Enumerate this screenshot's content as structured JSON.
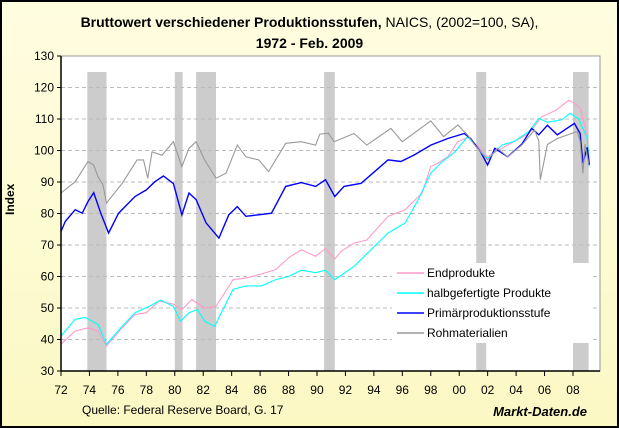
{
  "title": {
    "bold_part": "Bruttowert verschiedener Produktionsstufen,",
    "normal_part": " NAICS, (2002=100, SA),",
    "line2": "1972 - Feb. 2009"
  },
  "source": "Quelle: Federal Reserve Board, G. 17",
  "brand": "Markt-Daten.de",
  "chart_data": {
    "type": "line",
    "title": "Bruttowert verschiedener Produktionsstufen, NAICS, (2002=100, SA), 1972 - Feb. 2009",
    "xlabel": "",
    "ylabel": "Index",
    "xlim": [
      1972,
      2009.9
    ],
    "ylim": [
      30,
      130
    ],
    "x_ticks": [
      {
        "v": 1972,
        "l": "72"
      },
      {
        "v": 1974,
        "l": "74"
      },
      {
        "v": 1976,
        "l": "76"
      },
      {
        "v": 1978,
        "l": "78"
      },
      {
        "v": 1980,
        "l": "80"
      },
      {
        "v": 1982,
        "l": "82"
      },
      {
        "v": 1984,
        "l": "84"
      },
      {
        "v": 1986,
        "l": "86"
      },
      {
        "v": 1988,
        "l": "88"
      },
      {
        "v": 1990,
        "l": "90"
      },
      {
        "v": 1992,
        "l": "92"
      },
      {
        "v": 1994,
        "l": "94"
      },
      {
        "v": 1996,
        "l": "96"
      },
      {
        "v": 1998,
        "l": "98"
      },
      {
        "v": 2000,
        "l": "00"
      },
      {
        "v": 2002,
        "l": "02"
      },
      {
        "v": 2004,
        "l": "04"
      },
      {
        "v": 2006,
        "l": "06"
      },
      {
        "v": 2008,
        "l": "08"
      }
    ],
    "y_ticks": [
      30,
      40,
      50,
      60,
      70,
      80,
      90,
      100,
      110,
      120,
      130
    ],
    "grid": "horizontal dashed",
    "legend_position": "bottom-right",
    "recession_shading": [
      [
        1973.85,
        1975.2
      ],
      [
        1980.0,
        1980.55
      ],
      [
        1981.5,
        1982.9
      ],
      [
        1990.5,
        1991.25
      ],
      [
        2001.2,
        2001.9
      ],
      [
        2008.0,
        2009.1
      ]
    ],
    "shading_color": "#cccccc",
    "series": [
      {
        "name": "Endprodukte",
        "color": "#ff99cc",
        "points": [
          [
            1972,
            38.5
          ],
          [
            1973,
            42.7
          ],
          [
            1973.9,
            43.7
          ],
          [
            1974.6,
            42.7
          ],
          [
            1975.2,
            37.9
          ],
          [
            1976.3,
            43.7
          ],
          [
            1977.2,
            47.9
          ],
          [
            1978,
            48.5
          ],
          [
            1978.9,
            52.2
          ],
          [
            1979.9,
            51.2
          ],
          [
            1980.5,
            49.5
          ],
          [
            1981.2,
            52.7
          ],
          [
            1982.1,
            50
          ],
          [
            1982.9,
            50.5
          ],
          [
            1984.1,
            59
          ],
          [
            1985,
            59.5
          ],
          [
            1986.1,
            60.8
          ],
          [
            1987.1,
            62.2
          ],
          [
            1988,
            65.9
          ],
          [
            1988.9,
            68.5
          ],
          [
            1989.9,
            66.4
          ],
          [
            1990.6,
            68.9
          ],
          [
            1991.25,
            65.6
          ],
          [
            1991.7,
            68
          ],
          [
            1992.6,
            70.6
          ],
          [
            1993.5,
            71.6
          ],
          [
            1995,
            79.1
          ],
          [
            1996.2,
            81.2
          ],
          [
            1997.4,
            86.5
          ],
          [
            1998,
            94.9
          ],
          [
            1998.5,
            96
          ],
          [
            1999.2,
            98
          ],
          [
            1999.9,
            102.8
          ],
          [
            2000.6,
            104.2
          ],
          [
            2001.3,
            101.3
          ],
          [
            2002,
            98
          ],
          [
            2003,
            100.7
          ],
          [
            2003.9,
            103
          ],
          [
            2004.9,
            105.4
          ],
          [
            2005.8,
            110.7
          ],
          [
            2006.8,
            112.8
          ],
          [
            2007.7,
            115.9
          ],
          [
            2008.1,
            115
          ],
          [
            2008.5,
            113.5
          ],
          [
            2009,
            105
          ],
          [
            2009.15,
            96
          ]
        ]
      },
      {
        "name": "halbgefertigte Produkte",
        "color": "#00ffff",
        "points": [
          [
            1972,
            41.1
          ],
          [
            1973,
            46.4
          ],
          [
            1973.7,
            47
          ],
          [
            1974.6,
            44.8
          ],
          [
            1975.2,
            38.5
          ],
          [
            1976.3,
            44.2
          ],
          [
            1977.2,
            48.5
          ],
          [
            1978.2,
            50.5
          ],
          [
            1979,
            52.5
          ],
          [
            1979.9,
            50.5
          ],
          [
            1980.4,
            45.8
          ],
          [
            1981,
            48.5
          ],
          [
            1981.6,
            49.5
          ],
          [
            1982.1,
            45.8
          ],
          [
            1982.8,
            44.2
          ],
          [
            1984.1,
            55.9
          ],
          [
            1985,
            57
          ],
          [
            1986.1,
            57
          ],
          [
            1987.1,
            59
          ],
          [
            1988,
            60
          ],
          [
            1988.9,
            62
          ],
          [
            1989.9,
            61.2
          ],
          [
            1990.6,
            62
          ],
          [
            1991.25,
            59
          ],
          [
            1992.6,
            63.2
          ],
          [
            1993.8,
            68.5
          ],
          [
            1995,
            73.8
          ],
          [
            1996.2,
            77
          ],
          [
            1997.1,
            84.3
          ],
          [
            1998,
            92.8
          ],
          [
            1998.7,
            96
          ],
          [
            1999.7,
            99.6
          ],
          [
            2000.6,
            104.4
          ],
          [
            2001.3,
            100.7
          ],
          [
            2002,
            97.4
          ],
          [
            2003,
            101.7
          ],
          [
            2003.9,
            103
          ],
          [
            2004.9,
            106
          ],
          [
            2005.6,
            110.2
          ],
          [
            2006.2,
            109
          ],
          [
            2007.2,
            109.7
          ],
          [
            2007.8,
            111.8
          ],
          [
            2008.4,
            110
          ],
          [
            2009,
            104
          ],
          [
            2009.15,
            95
          ]
        ]
      },
      {
        "name": "Primärproduktionsstufe",
        "color": "#0000ff",
        "points": [
          [
            1972,
            74.3
          ],
          [
            1972.3,
            77.5
          ],
          [
            1973,
            81.2
          ],
          [
            1973.5,
            80.1
          ],
          [
            1973.9,
            83.8
          ],
          [
            1974.3,
            86.6
          ],
          [
            1974.8,
            80.1
          ],
          [
            1975.35,
            73.8
          ],
          [
            1976.05,
            80.1
          ],
          [
            1977.2,
            85.4
          ],
          [
            1978,
            87.5
          ],
          [
            1978.6,
            90.1
          ],
          [
            1979.2,
            91.9
          ],
          [
            1979.9,
            89.5
          ],
          [
            1980.5,
            79.6
          ],
          [
            1981,
            86.5
          ],
          [
            1981.5,
            84.4
          ],
          [
            1982.2,
            77
          ],
          [
            1983.1,
            72.2
          ],
          [
            1983.8,
            79.6
          ],
          [
            1984.4,
            82.2
          ],
          [
            1985,
            79.1
          ],
          [
            1985.9,
            79.6
          ],
          [
            1986.8,
            80.1
          ],
          [
            1987.8,
            88.6
          ],
          [
            1988.9,
            89.8
          ],
          [
            1989.9,
            88.6
          ],
          [
            1990.6,
            90.7
          ],
          [
            1991.25,
            85.4
          ],
          [
            1991.9,
            88.6
          ],
          [
            1993.1,
            89.6
          ],
          [
            1995,
            97
          ],
          [
            1995.9,
            96.5
          ],
          [
            1996.85,
            98.6
          ],
          [
            1998,
            101.7
          ],
          [
            1999.2,
            103.8
          ],
          [
            2000.35,
            105.4
          ],
          [
            2000.8,
            103.8
          ],
          [
            2001.5,
            99.6
          ],
          [
            2002,
            95.4
          ],
          [
            2002.5,
            100.7
          ],
          [
            2003.4,
            98
          ],
          [
            2004.4,
            102
          ],
          [
            2005.1,
            107
          ],
          [
            2005.6,
            105
          ],
          [
            2006.2,
            108
          ],
          [
            2006.9,
            105
          ],
          [
            2008.1,
            108.6
          ],
          [
            2008.5,
            105.4
          ],
          [
            2008.7,
            96
          ],
          [
            2009,
            101
          ],
          [
            2009.15,
            95.5
          ]
        ]
      },
      {
        "name": "Rohmaterialien",
        "color": "#999999",
        "points": [
          [
            1972,
            86.5
          ],
          [
            1973,
            90.1
          ],
          [
            1973.9,
            96.5
          ],
          [
            1974.3,
            95.4
          ],
          [
            1974.6,
            91.7
          ],
          [
            1974.95,
            89.1
          ],
          [
            1975.2,
            83.3
          ],
          [
            1976.3,
            89.6
          ],
          [
            1977.35,
            97
          ],
          [
            1977.8,
            97
          ],
          [
            1978.1,
            91.2
          ],
          [
            1978.4,
            99.6
          ],
          [
            1979.1,
            98.5
          ],
          [
            1979.9,
            102.8
          ],
          [
            1980.5,
            94.9
          ],
          [
            1981,
            100.7
          ],
          [
            1981.5,
            102.8
          ],
          [
            1982.1,
            97
          ],
          [
            1982.9,
            91.2
          ],
          [
            1983.6,
            92.8
          ],
          [
            1984.4,
            101.7
          ],
          [
            1985,
            98
          ],
          [
            1985.9,
            97
          ],
          [
            1986.6,
            93.3
          ],
          [
            1987.8,
            102.3
          ],
          [
            1988.9,
            102.8
          ],
          [
            1989.9,
            101.7
          ],
          [
            1990.2,
            105.2
          ],
          [
            1990.8,
            105.5
          ],
          [
            1991.2,
            102.8
          ],
          [
            1992.6,
            105.4
          ],
          [
            1993.5,
            101.7
          ],
          [
            1995.2,
            107
          ],
          [
            1996,
            102.8
          ],
          [
            1998,
            109.4
          ],
          [
            1998.9,
            104.4
          ],
          [
            1999.9,
            108.1
          ],
          [
            2000.6,
            104.9
          ],
          [
            2001.1,
            101.7
          ],
          [
            2002,
            97
          ],
          [
            2002.7,
            100.7
          ],
          [
            2003.4,
            98
          ],
          [
            2004.4,
            101.7
          ],
          [
            2005.3,
            106.5
          ],
          [
            2005.6,
            103
          ],
          [
            2005.7,
            90.7
          ],
          [
            2006.2,
            101.9
          ],
          [
            2006.9,
            103.8
          ],
          [
            2007.9,
            105.4
          ],
          [
            2008.3,
            106
          ],
          [
            2008.5,
            103
          ],
          [
            2008.7,
            92.8
          ],
          [
            2008.85,
            102
          ],
          [
            2009.1,
            96
          ]
        ]
      }
    ]
  }
}
